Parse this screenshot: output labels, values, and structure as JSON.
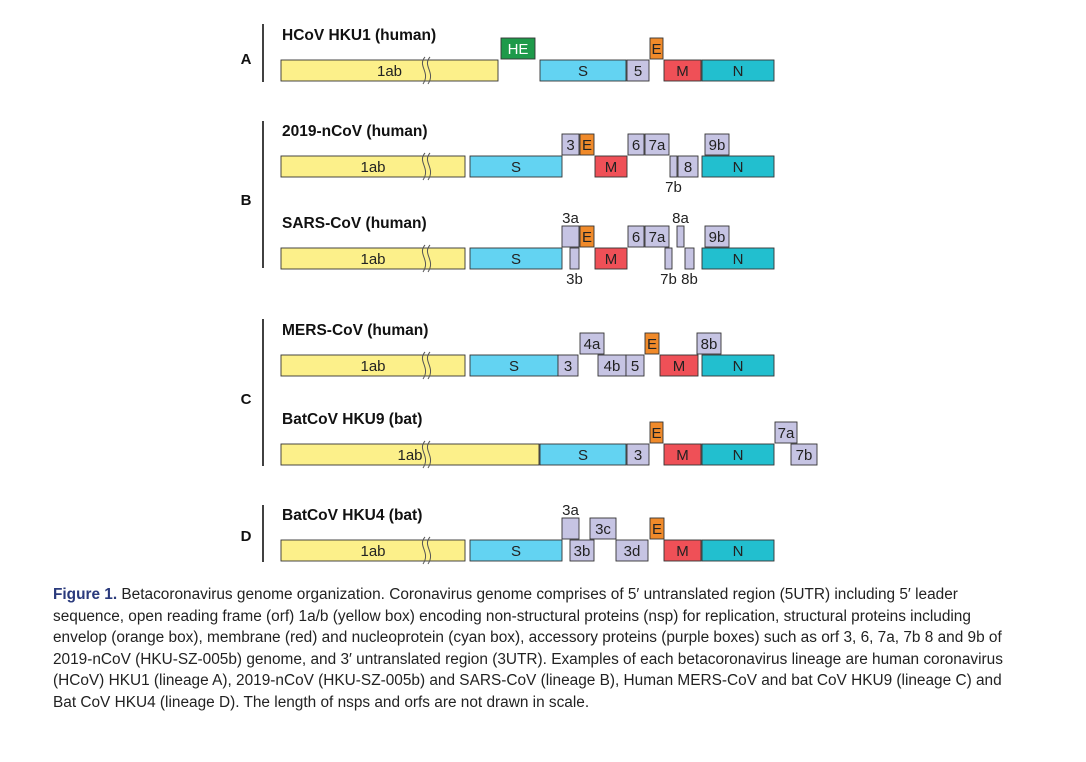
{
  "colors": {
    "orf1ab": "#fcf08a",
    "spike": "#63d3f2",
    "envelope": "#f08a2a",
    "membrane": "#ef5057",
    "nucleoprotein": "#22bfcf",
    "accessory": "#c6c4e3",
    "he": "#1e9a4a"
  },
  "panels": [
    {
      "letter": "A",
      "genomes": [
        {
          "name": "HCoV HKU1 (human)",
          "boxes": [
            {
              "label": "1ab",
              "kind": "orf1ab"
            },
            {
              "label": "HE",
              "kind": "he"
            },
            {
              "label": "S",
              "kind": "spike"
            },
            {
              "label": "5",
              "kind": "accessory"
            },
            {
              "label": "E",
              "kind": "envelope"
            },
            {
              "label": "M",
              "kind": "membrane"
            },
            {
              "label": "N",
              "kind": "nucleoprotein"
            }
          ]
        }
      ]
    },
    {
      "letter": "B",
      "genomes": [
        {
          "name": "2019-nCoV (human)",
          "boxes": [
            {
              "label": "1ab",
              "kind": "orf1ab"
            },
            {
              "label": "S",
              "kind": "spike"
            },
            {
              "label": "3",
              "kind": "accessory"
            },
            {
              "label": "E",
              "kind": "envelope"
            },
            {
              "label": "M",
              "kind": "membrane"
            },
            {
              "label": "6",
              "kind": "accessory"
            },
            {
              "label": "7a",
              "kind": "accessory"
            },
            {
              "label": "7b",
              "kind": "accessory"
            },
            {
              "label": "8",
              "kind": "accessory"
            },
            {
              "label": "9b",
              "kind": "accessory"
            },
            {
              "label": "N",
              "kind": "nucleoprotein"
            }
          ]
        },
        {
          "name": "SARS-CoV (human)",
          "boxes": [
            {
              "label": "1ab",
              "kind": "orf1ab"
            },
            {
              "label": "S",
              "kind": "spike"
            },
            {
              "label": "3a",
              "kind": "accessory"
            },
            {
              "label": "3b",
              "kind": "accessory"
            },
            {
              "label": "E",
              "kind": "envelope"
            },
            {
              "label": "M",
              "kind": "membrane"
            },
            {
              "label": "6",
              "kind": "accessory"
            },
            {
              "label": "7a",
              "kind": "accessory"
            },
            {
              "label": "7b",
              "kind": "accessory"
            },
            {
              "label": "8a",
              "kind": "accessory"
            },
            {
              "label": "8b",
              "kind": "accessory"
            },
            {
              "label": "9b",
              "kind": "accessory"
            },
            {
              "label": "N",
              "kind": "nucleoprotein"
            }
          ]
        }
      ]
    },
    {
      "letter": "C",
      "genomes": [
        {
          "name": "MERS-CoV (human)",
          "boxes": [
            {
              "label": "1ab",
              "kind": "orf1ab"
            },
            {
              "label": "S",
              "kind": "spike"
            },
            {
              "label": "3",
              "kind": "accessory"
            },
            {
              "label": "4a",
              "kind": "accessory"
            },
            {
              "label": "4b",
              "kind": "accessory"
            },
            {
              "label": "5",
              "kind": "accessory"
            },
            {
              "label": "E",
              "kind": "envelope"
            },
            {
              "label": "M",
              "kind": "membrane"
            },
            {
              "label": "8b",
              "kind": "accessory"
            },
            {
              "label": "N",
              "kind": "nucleoprotein"
            }
          ]
        },
        {
          "name": "BatCoV HKU9 (bat)",
          "boxes": [
            {
              "label": "1ab",
              "kind": "orf1ab"
            },
            {
              "label": "S",
              "kind": "spike"
            },
            {
              "label": "3",
              "kind": "accessory"
            },
            {
              "label": "E",
              "kind": "envelope"
            },
            {
              "label": "M",
              "kind": "membrane"
            },
            {
              "label": "N",
              "kind": "nucleoprotein"
            },
            {
              "label": "7a",
              "kind": "accessory"
            },
            {
              "label": "7b",
              "kind": "accessory"
            }
          ]
        }
      ]
    },
    {
      "letter": "D",
      "genomes": [
        {
          "name": "BatCoV HKU4 (bat)",
          "boxes": [
            {
              "label": "1ab",
              "kind": "orf1ab"
            },
            {
              "label": "S",
              "kind": "spike"
            },
            {
              "label": "3a",
              "kind": "accessory"
            },
            {
              "label": "3b",
              "kind": "accessory"
            },
            {
              "label": "3c",
              "kind": "accessory"
            },
            {
              "label": "3d",
              "kind": "accessory"
            },
            {
              "label": "E",
              "kind": "envelope"
            },
            {
              "label": "M",
              "kind": "membrane"
            },
            {
              "label": "N",
              "kind": "nucleoprotein"
            }
          ]
        }
      ]
    }
  ],
  "caption": {
    "label": "Figure 1.",
    "text": " Betacoronavirus genome organization. Coronavirus genome comprises of 5′ untranslated region (5UTR) including 5′ leader sequence, open reading frame (orf) 1a/b (yellow box) encoding non-structural proteins (nsp) for replication, structural proteins including envelop (orange box), membrane (red) and nucleoprotein (cyan box), accessory proteins (purple boxes) such as orf 3, 6, 7a, 7b 8 and 9b of 2019-nCoV (HKU-SZ-005b) genome, and 3′ untranslated region (3UTR). Examples of each betacoronavirus lineage are human coronavirus (HCoV) HKU1 (lineage A), 2019-nCoV (HKU-SZ-005b) and SARS-CoV (lineage B), Human MERS-CoV and bat CoV HKU9 (lineage C) and Bat CoV HKU4 (lineage D). The length of nsps and orfs are not drawn in scale."
  }
}
